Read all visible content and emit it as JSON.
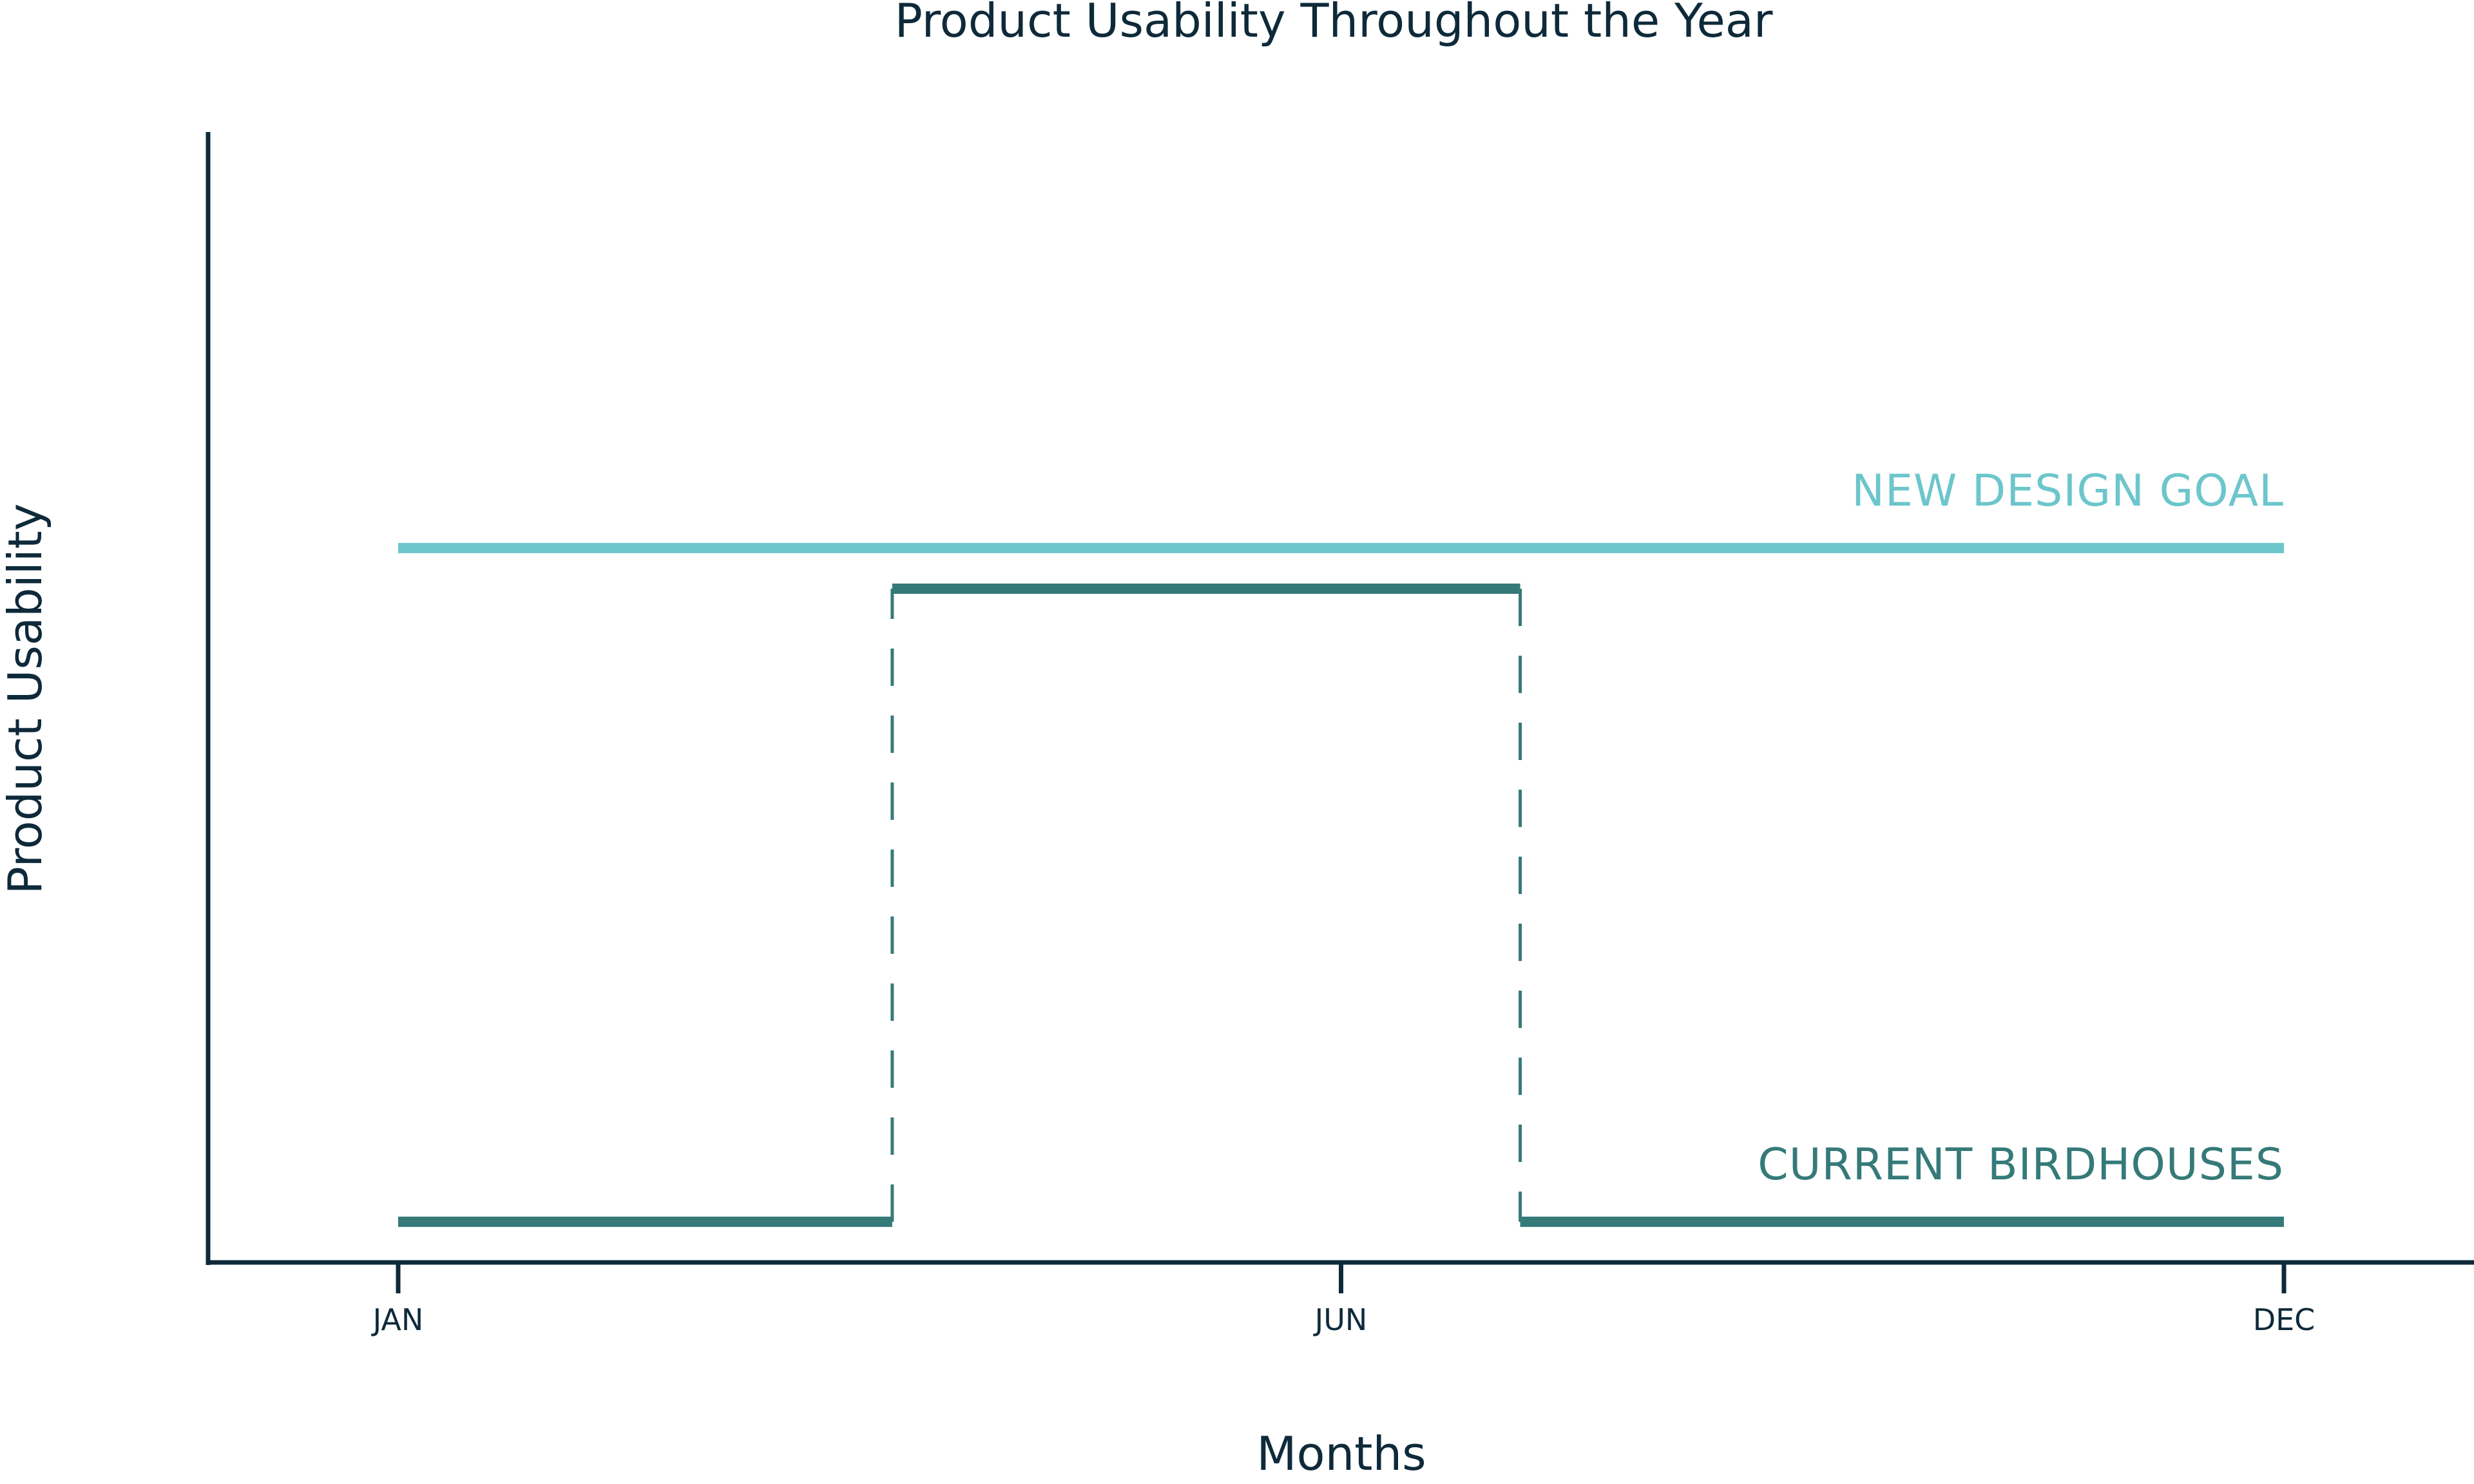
{
  "chart_data": {
    "type": "line",
    "title": "Product Usability Throughout the Year",
    "xlabel": "Months",
    "ylabel": "Product Usability",
    "x_ticks": [
      {
        "label": "JAN",
        "month": 1
      },
      {
        "label": "JUN",
        "month": 6
      },
      {
        "label": "DEC",
        "month": 11
      }
    ],
    "xlim": [
      0,
      12
    ],
    "ylim": [
      0,
      1.25
    ],
    "grid": false,
    "series": [
      {
        "name": "NEW DESIGN GOAL",
        "color": "#6cc6cc",
        "style": "solid",
        "points": [
          [
            1,
            0.79
          ],
          [
            11,
            0.79
          ]
        ]
      },
      {
        "name": "CURRENT BIRDHOUSES",
        "color": "#357a79",
        "style": "step",
        "segments": [
          {
            "x": [
              1,
              3.62
            ],
            "y": 0.045,
            "style": "solid"
          },
          {
            "x": [
              3.62,
              3.62
            ],
            "y": [
              0.045,
              0.745
            ],
            "style": "dashed"
          },
          {
            "x": [
              3.62,
              6.95
            ],
            "y": 0.745,
            "style": "solid"
          },
          {
            "x": [
              6.95,
              6.95
            ],
            "y": [
              0.745,
              0.045
            ],
            "style": "dashed"
          },
          {
            "x": [
              6.95,
              11
            ],
            "y": 0.045,
            "style": "solid"
          }
        ]
      }
    ]
  }
}
